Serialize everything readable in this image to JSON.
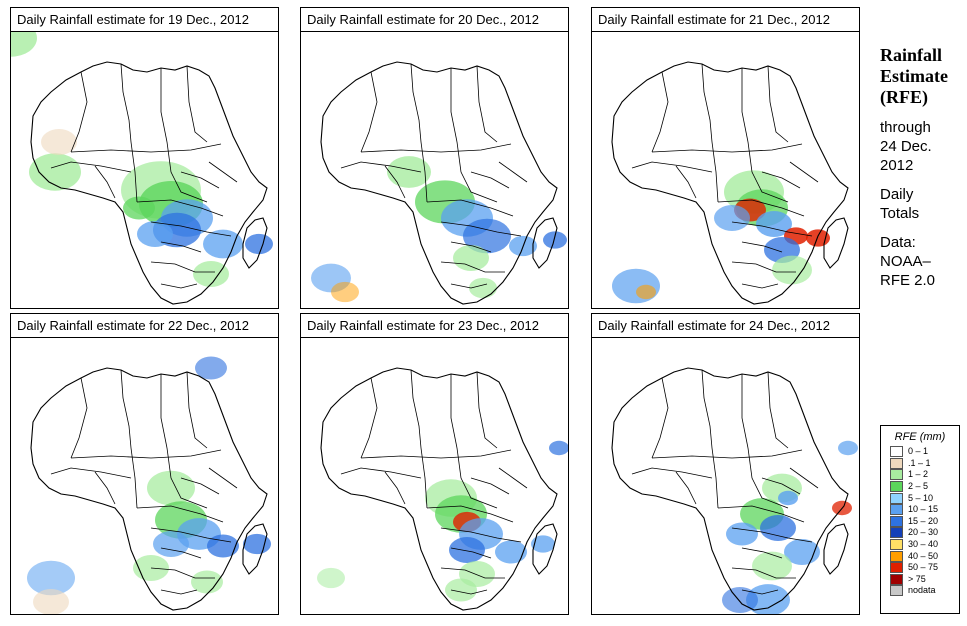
{
  "panels": [
    {
      "title": "Daily Rainfall estimate for  19 Dec., 2012"
    },
    {
      "title": "Daily Rainfall estimate for  20 Dec., 2012"
    },
    {
      "title": "Daily Rainfall estimate for  21 Dec., 2012"
    },
    {
      "title": "Daily Rainfall estimate for  22 Dec., 2012"
    },
    {
      "title": "Daily Rainfall estimate for  23 Dec., 2012"
    },
    {
      "title": "Daily Rainfall estimate for  24 Dec., 2012"
    }
  ],
  "side": {
    "title_line1": "Rainfall",
    "title_line2": "Estimate",
    "title_line3": "(RFE)",
    "through": "through",
    "date_line1": "24 Dec.",
    "date_line2": "2012",
    "daily_line1": "Daily",
    "daily_line2": "Totals",
    "data_line1": "Data:",
    "data_line2": "NOAA–",
    "data_line3": "RFE 2.0"
  },
  "legend": {
    "title": "RFE (mm)",
    "items": [
      {
        "label": "0 – 1",
        "color": "#ffffff"
      },
      {
        "label": ".1 – 1",
        "color": "#efd9be"
      },
      {
        "label": "1 – 2",
        "color": "#a8eca0"
      },
      {
        "label": "2 – 5",
        "color": "#5cd65c"
      },
      {
        "label": "5 – 10",
        "color": "#8fd3ff"
      },
      {
        "label": "10 – 15",
        "color": "#5aa0f0"
      },
      {
        "label": "15 – 20",
        "color": "#2e72e0"
      },
      {
        "label": "20 – 30",
        "color": "#1440b8"
      },
      {
        "label": "30 – 40",
        "color": "#ffe066"
      },
      {
        "label": "40 – 50",
        "color": "#ff9e00"
      },
      {
        "label": "50 – 75",
        "color": "#e02000"
      },
      {
        "label": "> 75",
        "color": "#a00000"
      },
      {
        "label": "nodata",
        "color": "#c8c8c8"
      }
    ]
  }
}
